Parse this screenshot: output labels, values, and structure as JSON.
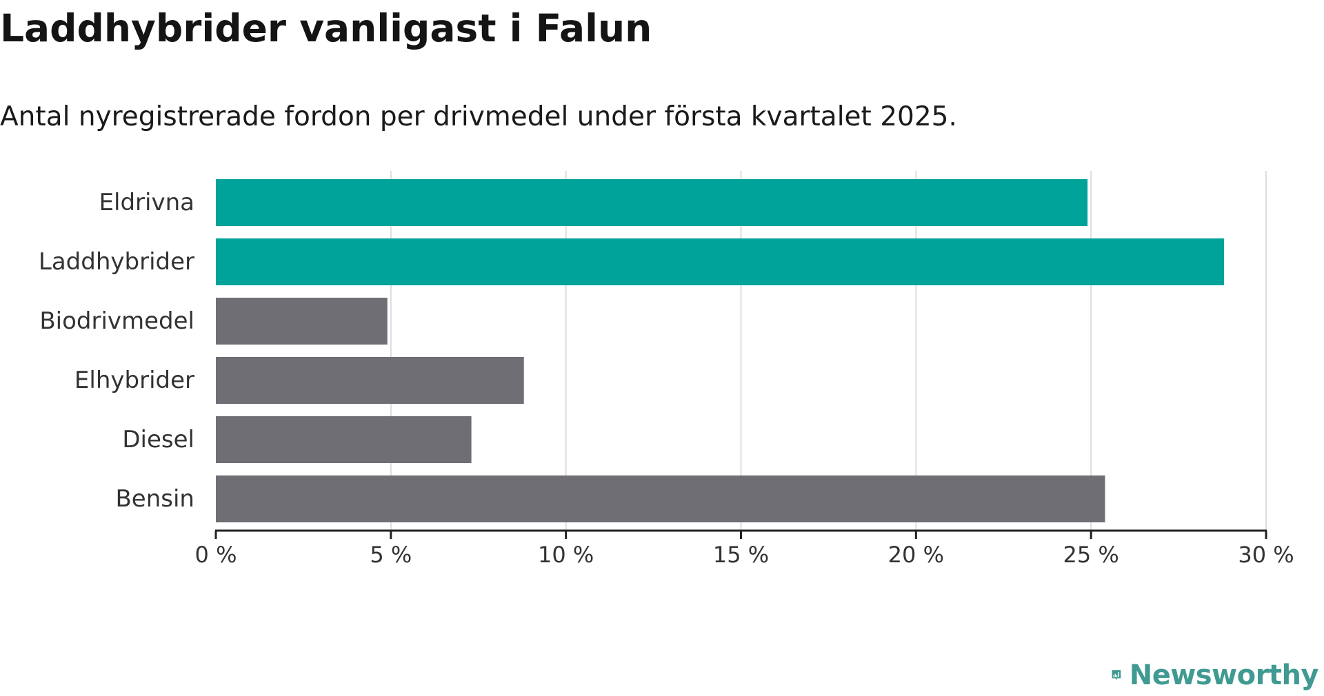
{
  "header": {
    "title": "Laddhybrider vanligast i Falun",
    "subtitle": "Antal nyregistrerade fordon per drivmedel under första kvartalet 2025."
  },
  "logo": {
    "text": "Newsworthy",
    "icon": "newsworthy-chart-bubble-icon",
    "color": "#3f9a91"
  },
  "colors": {
    "highlight": "#00a39a",
    "default": "#6f6e74",
    "grid": "#dddddd",
    "axis": "#222222",
    "label": "#333333"
  },
  "chart_data": {
    "type": "bar",
    "orientation": "horizontal",
    "title": "Laddhybrider vanligast i Falun",
    "subtitle": "Antal nyregistrerade fordon per drivmedel under första kvartalet 2025.",
    "categories": [
      "Eldrivna",
      "Laddhybrider",
      "Biodrivmedel",
      "Elhybrider",
      "Diesel",
      "Bensin"
    ],
    "values": [
      24.9,
      28.8,
      4.9,
      8.8,
      7.3,
      25.4
    ],
    "highlighted": [
      true,
      true,
      false,
      false,
      false,
      false
    ],
    "unit": "%",
    "xlim": [
      0,
      30
    ],
    "xticks": [
      0,
      5,
      10,
      15,
      20,
      25,
      30
    ],
    "xtick_labels": [
      "0 %",
      "5 %",
      "10 %",
      "15 %",
      "20 %",
      "25 %",
      "30 %"
    ],
    "xlabel": "",
    "ylabel": "",
    "grid": "vertical"
  }
}
